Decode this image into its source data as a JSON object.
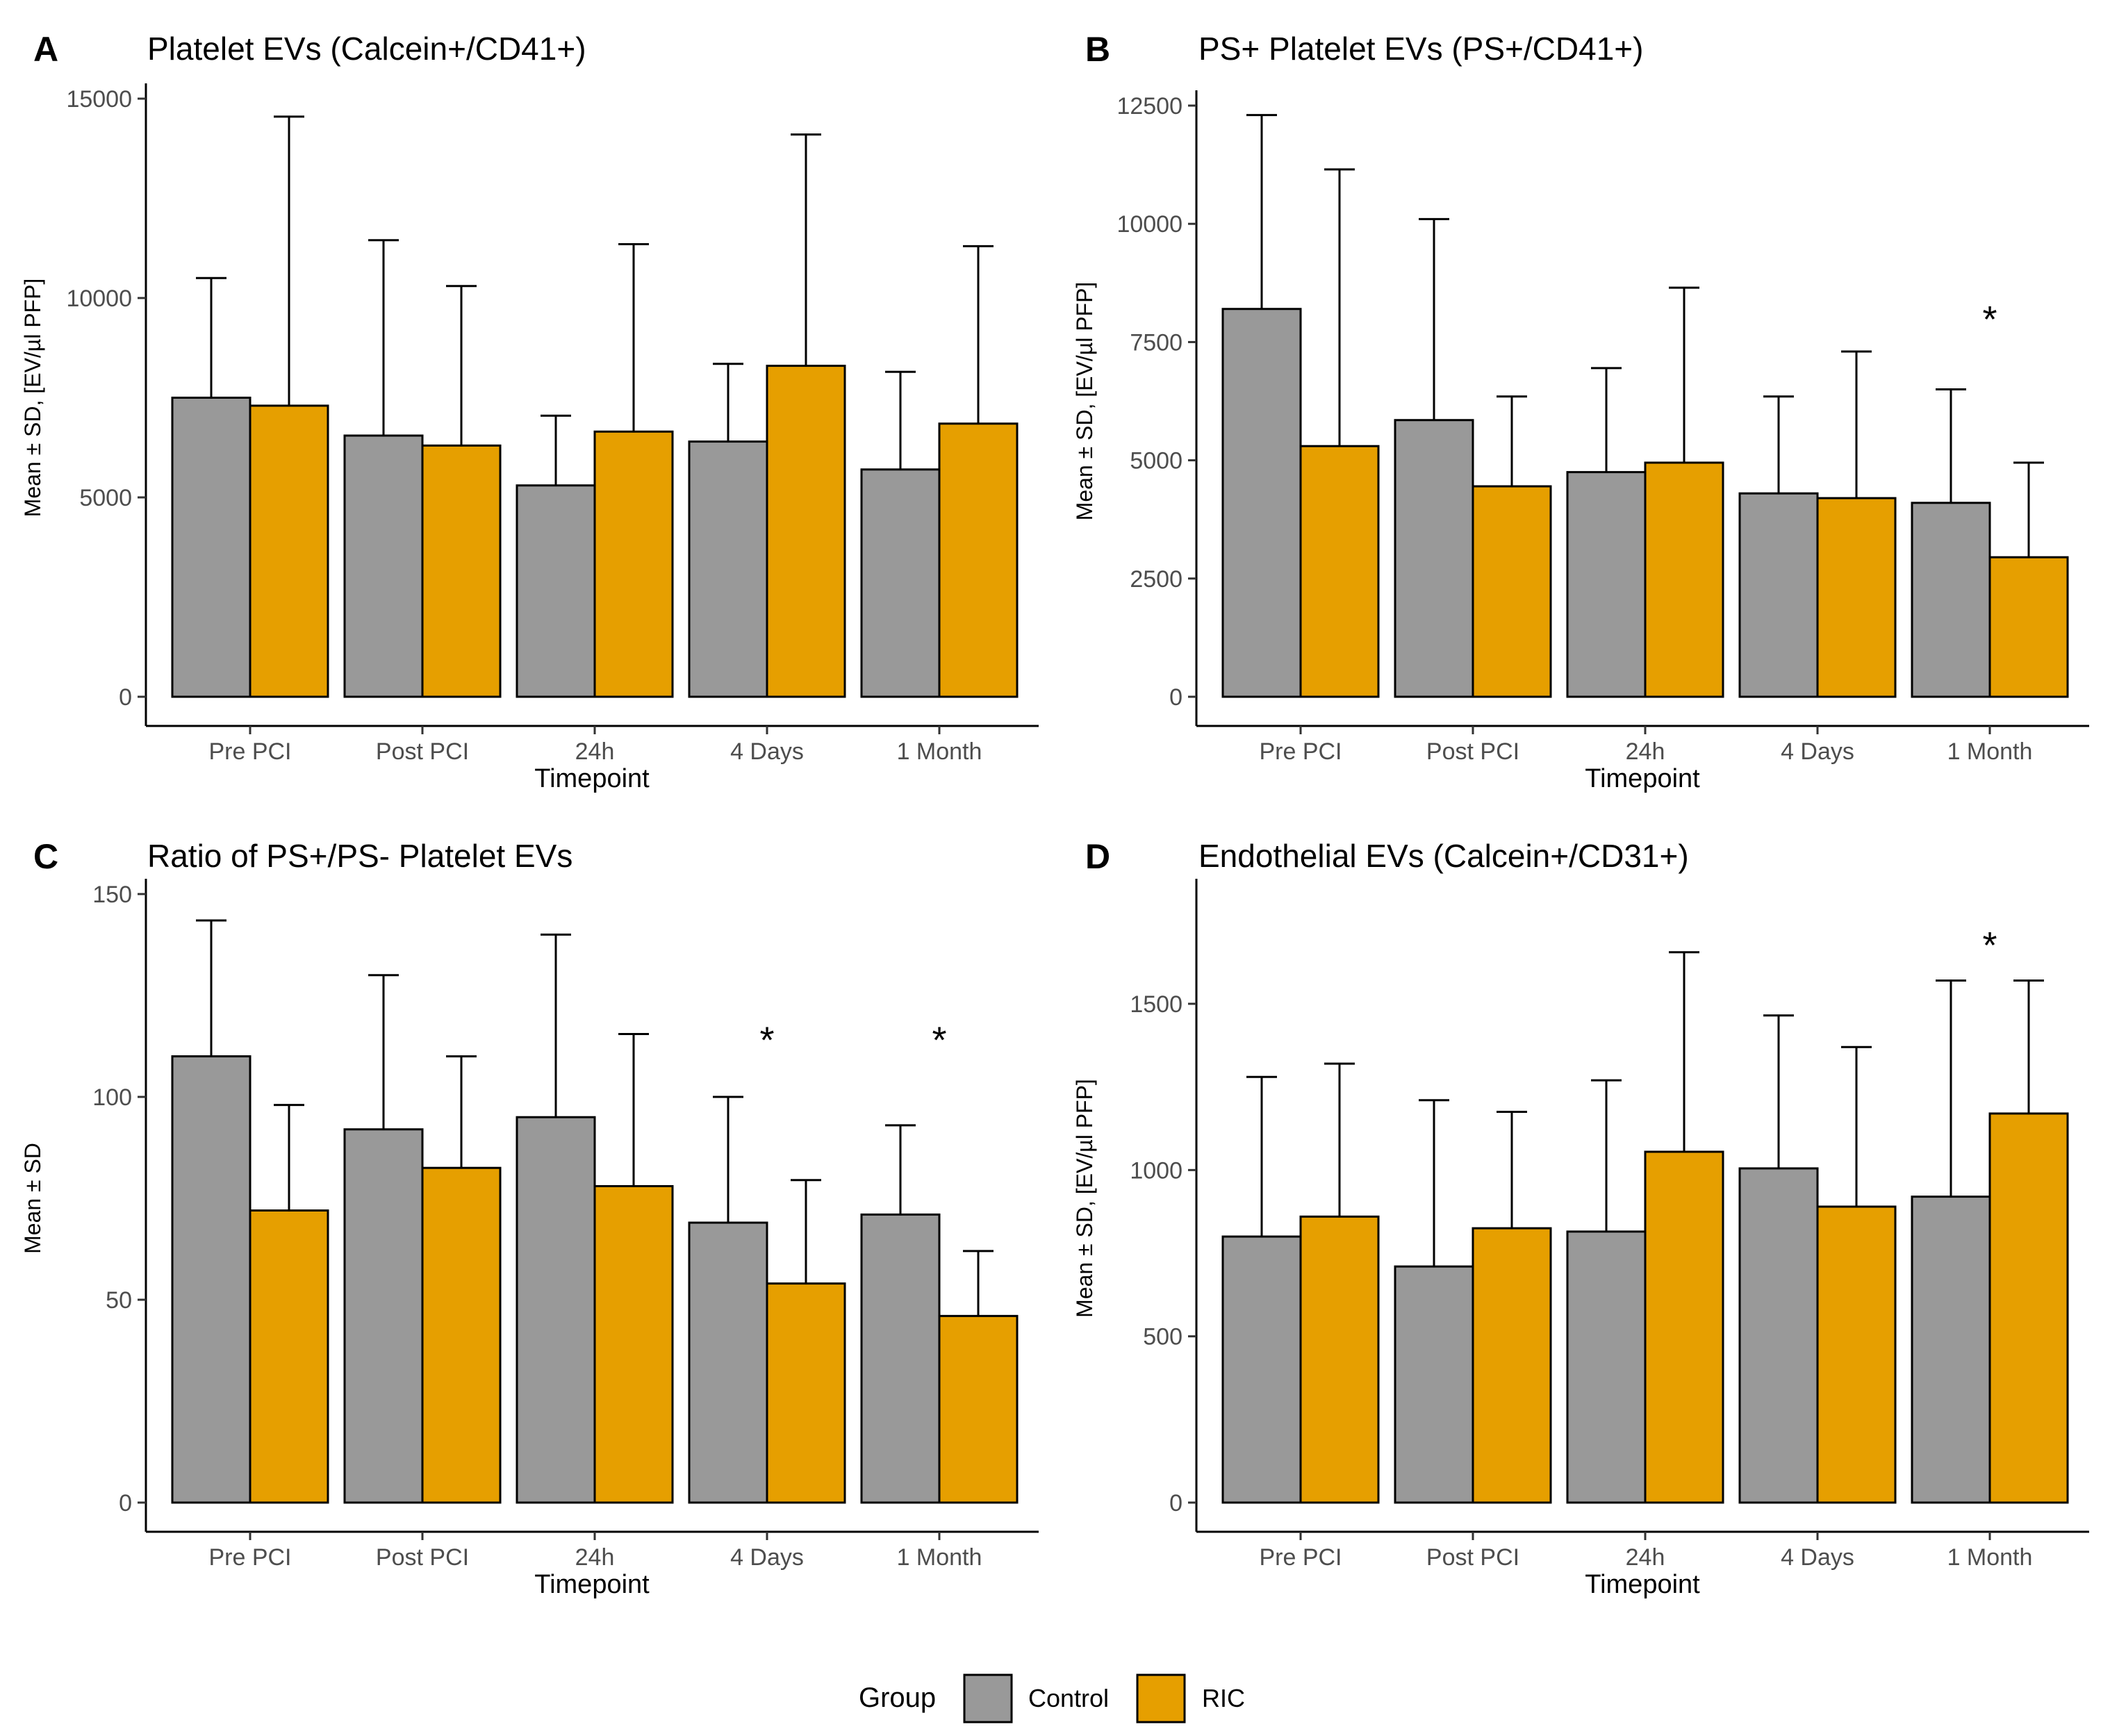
{
  "colors": {
    "control": "#999999",
    "ric": "#E69F00",
    "stroke": "#000000",
    "tick_text": "#4d4d4d"
  },
  "legend": {
    "title": "Group",
    "items": [
      {
        "label": "Control",
        "color": "#999999"
      },
      {
        "label": "RIC",
        "color": "#E69F00"
      }
    ]
  },
  "chart_data": [
    {
      "panel": "A",
      "type": "bar",
      "title": "Platelet EVs (Calcein+/CD41+)",
      "xlabel": "Timepoint",
      "ylabel": "Mean ± SD, [EV/µl PFP]",
      "ylim": [
        0,
        15000
      ],
      "yticks": [
        0,
        5000,
        10000,
        15000
      ],
      "categories": [
        "Pre PCI",
        "Post PCI",
        "24h",
        "4 Days",
        "1 Month"
      ],
      "series": [
        {
          "name": "Control",
          "values": [
            7500,
            6550,
            5300,
            6400,
            5700
          ],
          "sd": [
            3000,
            4900,
            1750,
            1950,
            2450
          ]
        },
        {
          "name": "RIC",
          "values": [
            7300,
            6300,
            6650,
            8300,
            6850
          ],
          "sd": [
            7250,
            4000,
            4700,
            5800,
            4450
          ]
        }
      ],
      "annotations": []
    },
    {
      "panel": "B",
      "type": "bar",
      "title": "PS+ Platelet EVs (PS+/CD41+)",
      "xlabel": "Timepoint",
      "ylabel": "Mean ± SD, [EV/µl PFP]",
      "ylim": [
        0,
        12500
      ],
      "yticks": [
        0,
        2500,
        5000,
        7500,
        10000,
        12500
      ],
      "categories": [
        "Pre PCI",
        "Post PCI",
        "24h",
        "4 Days",
        "1 Month"
      ],
      "series": [
        {
          "name": "Control",
          "values": [
            8200,
            5850,
            4750,
            4300,
            4100
          ],
          "sd": [
            4100,
            4250,
            2200,
            2050,
            2400
          ]
        },
        {
          "name": "RIC",
          "values": [
            5300,
            4450,
            4950,
            4200,
            2950
          ],
          "sd": [
            5850,
            1900,
            3700,
            3100,
            2000
          ]
        }
      ],
      "annotations": [
        {
          "text": "*",
          "category": "1 Month",
          "y": 8150
        }
      ]
    },
    {
      "panel": "C",
      "type": "bar",
      "title": "Ratio of PS+/PS- Platelet EVs",
      "xlabel": "Timepoint",
      "ylabel": "Mean ± SD",
      "ylim": [
        0,
        150
      ],
      "yticks": [
        0,
        50,
        100,
        150
      ],
      "categories": [
        "Pre PCI",
        "Post PCI",
        "24h",
        "4 Days",
        "1 Month"
      ],
      "series": [
        {
          "name": "Control",
          "values": [
            110,
            92,
            95,
            69,
            71
          ],
          "sd": [
            33.5,
            38,
            45,
            31,
            22
          ]
        },
        {
          "name": "RIC",
          "values": [
            72,
            82.5,
            78,
            54,
            46
          ],
          "sd": [
            26,
            27.5,
            37.5,
            25.5,
            16
          ]
        }
      ],
      "annotations": [
        {
          "text": "*",
          "category": "4 Days",
          "y": 116
        },
        {
          "text": "*",
          "category": "1 Month",
          "y": 116
        }
      ]
    },
    {
      "panel": "D",
      "type": "bar",
      "title": "Endothelial EVs (Calcein+/CD31+)",
      "xlabel": "Timepoint",
      "ylabel": "Mean ± SD, [EV/µl PFP]",
      "ylim": [
        0,
        1830
      ],
      "yticks": [
        0,
        500,
        1000,
        1500
      ],
      "categories": [
        "Pre PCI",
        "Post PCI",
        "24h",
        "4 Days",
        "1 Month"
      ],
      "series": [
        {
          "name": "Control",
          "values": [
            800,
            710,
            815,
            1005,
            920
          ],
          "sd": [
            480,
            500,
            455,
            460,
            650
          ]
        },
        {
          "name": "RIC",
          "values": [
            860,
            825,
            1055,
            890,
            1170
          ],
          "sd": [
            460,
            350,
            600,
            480,
            400
          ]
        }
      ],
      "annotations": [
        {
          "text": "*",
          "category": "1 Month",
          "y": 1700
        }
      ]
    }
  ]
}
